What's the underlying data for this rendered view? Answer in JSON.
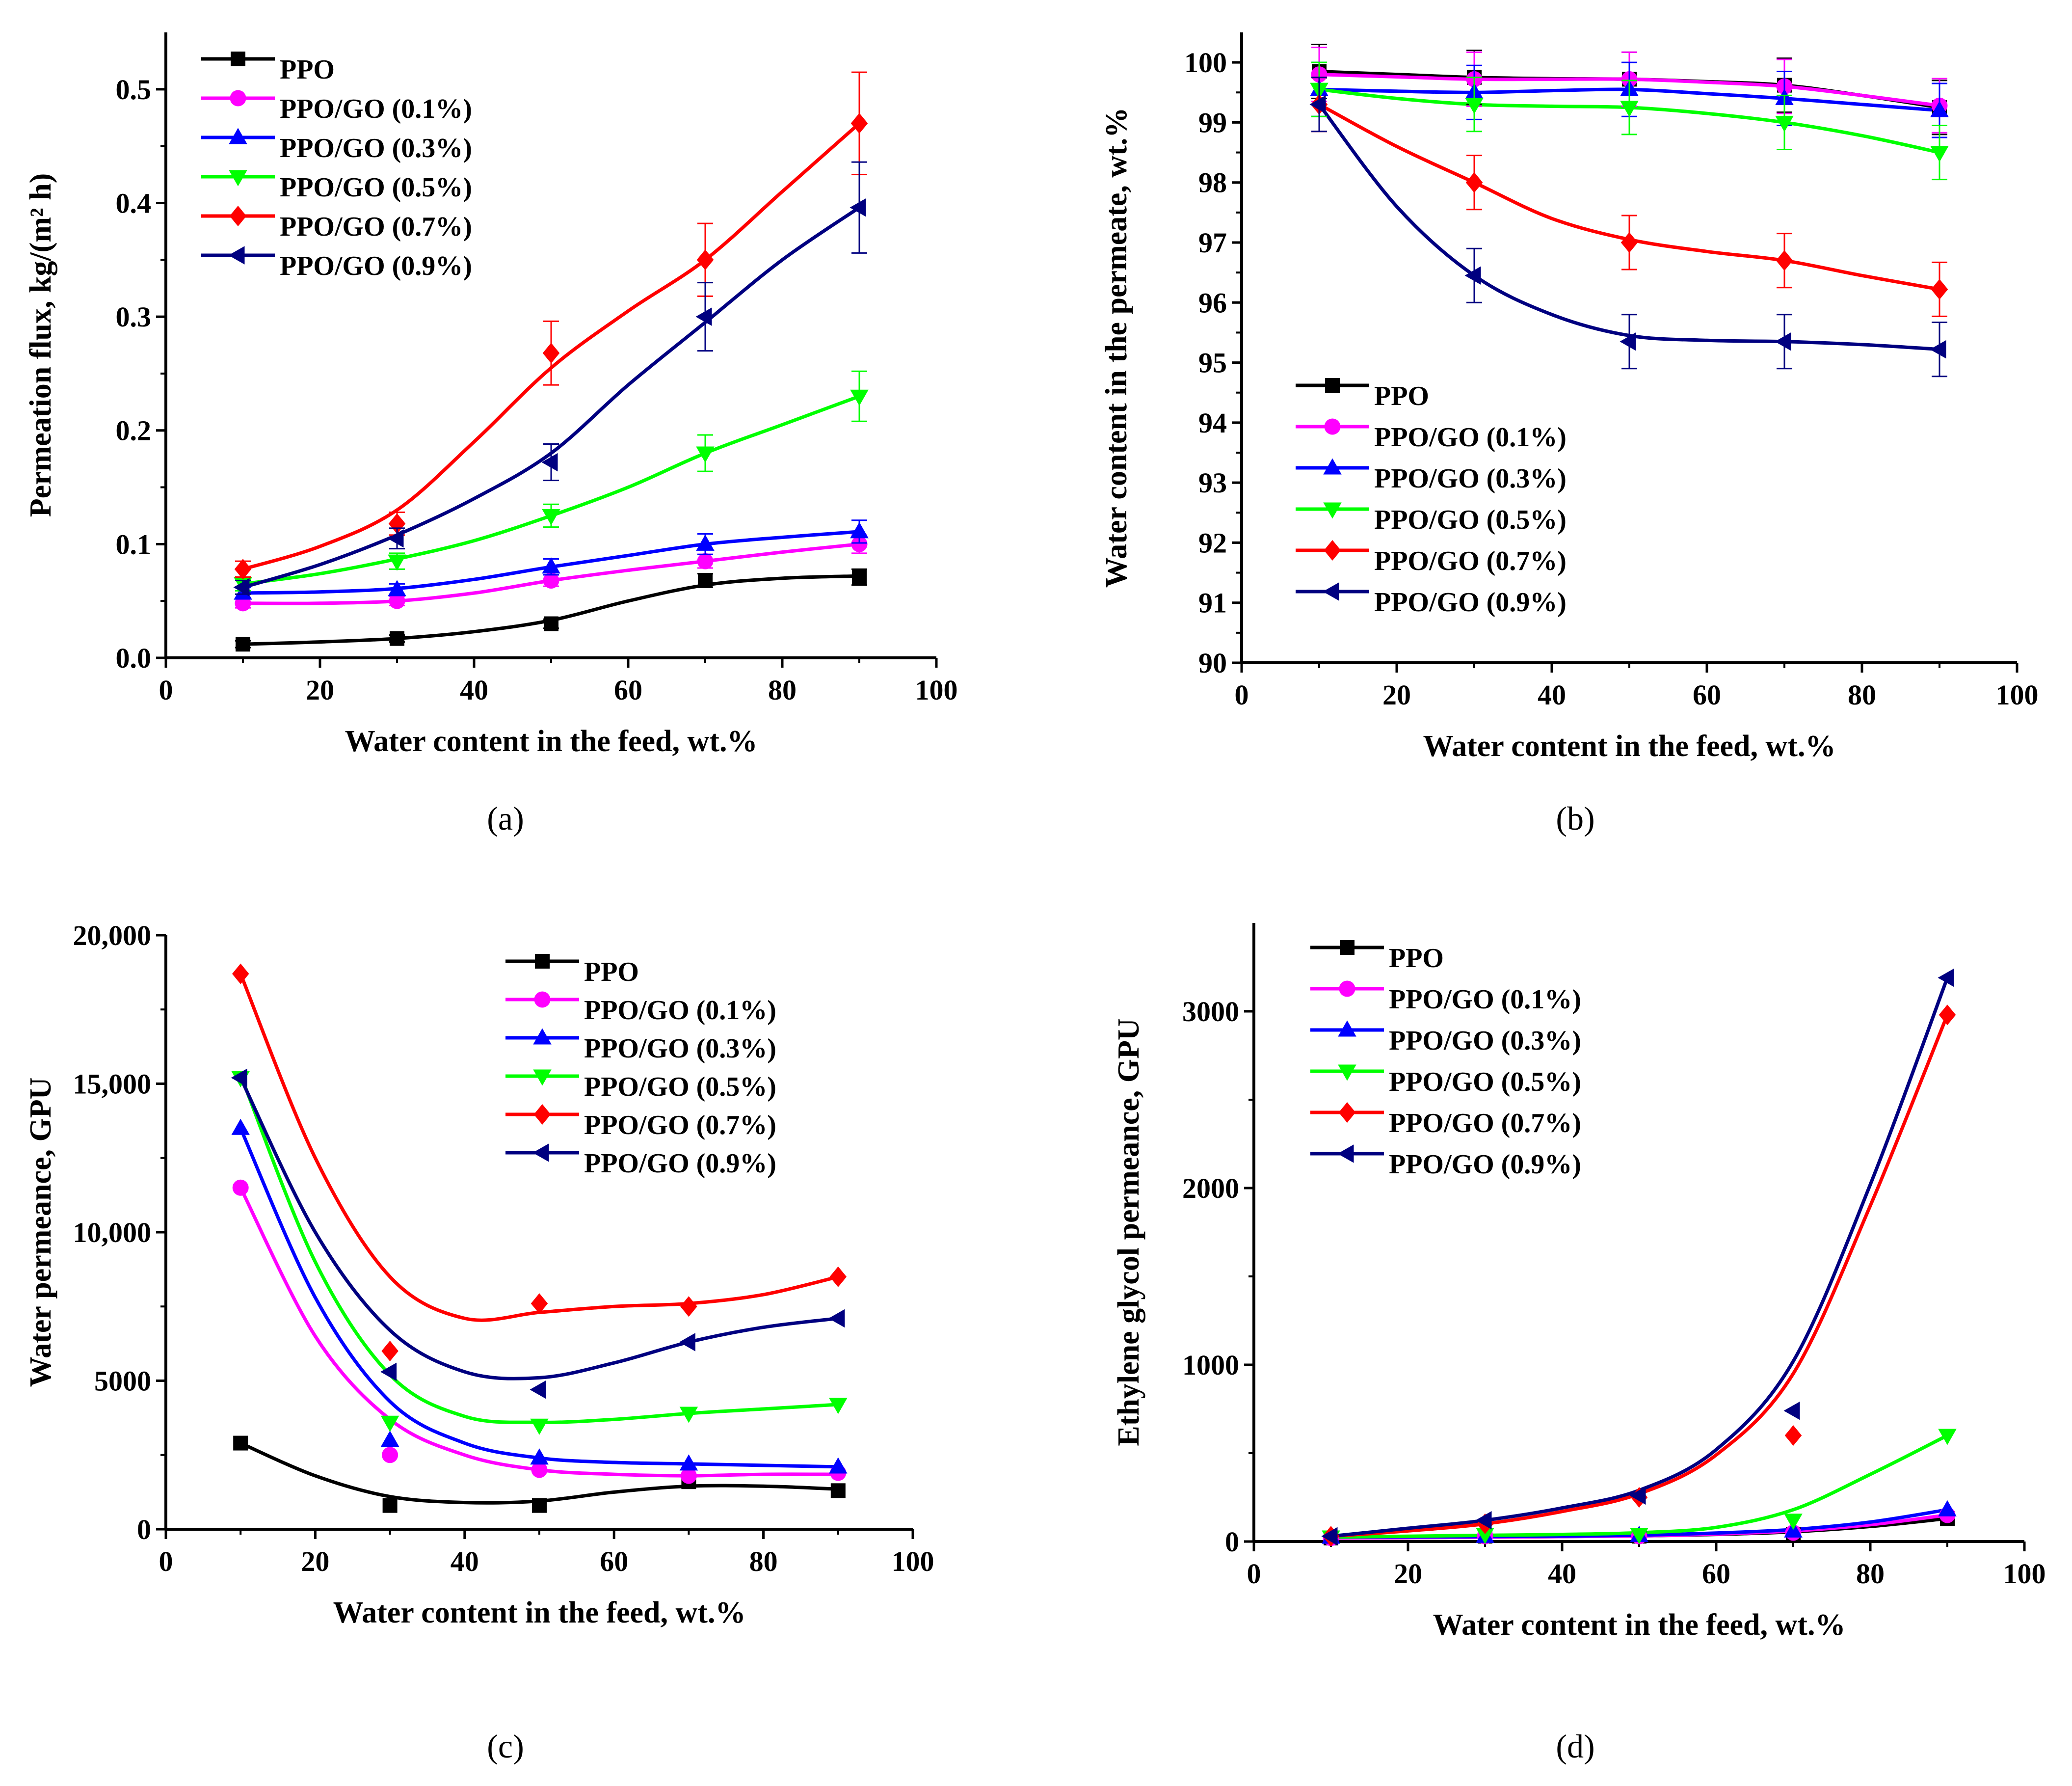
{
  "chart_data": [
    {
      "panel": "(a)",
      "type": "line",
      "xlabel": "Water content in the feed, wt.%",
      "ylabel": "Permeation flux, kg/(m² h)",
      "xlim": [
        0,
        100
      ],
      "ylim": [
        0.0,
        0.55
      ],
      "xticks": [
        0,
        20,
        40,
        60,
        80,
        100
      ],
      "yticks": [
        0.0,
        0.1,
        0.2,
        0.3,
        0.4,
        0.5
      ],
      "ytick_labels": [
        "0.0",
        "0.1",
        "0.2",
        "0.3",
        "0.4",
        "0.5"
      ],
      "legend_position": "top-left",
      "x": [
        10,
        30,
        50,
        70,
        90
      ],
      "series": [
        {
          "name": "PPO",
          "color": "#000000",
          "marker": "square",
          "values": [
            0.012,
            0.017,
            0.03,
            0.068,
            0.071
          ],
          "errors": [
            0.003,
            0.003,
            0.004,
            0.006,
            0.007
          ]
        },
        {
          "name": "PPO/GO (0.1%)",
          "color": "#ff00ff",
          "marker": "circle",
          "values": [
            0.048,
            0.05,
            0.068,
            0.085,
            0.1
          ],
          "errors": [
            0.004,
            0.004,
            0.005,
            0.006,
            0.008
          ]
        },
        {
          "name": "PPO/GO (0.3%)",
          "color": "#0000ff",
          "marker": "triangle-up",
          "values": [
            0.057,
            0.06,
            0.08,
            0.1,
            0.111
          ],
          "errors": [
            0.005,
            0.005,
            0.007,
            0.009,
            0.01
          ]
        },
        {
          "name": "PPO/GO (0.5%)",
          "color": "#00ff00",
          "marker": "triangle-down",
          "values": [
            0.065,
            0.085,
            0.125,
            0.18,
            0.23
          ],
          "errors": [
            0.006,
            0.007,
            0.01,
            0.016,
            0.022
          ]
        },
        {
          "name": "PPO/GO (0.7%)",
          "color": "#ff0000",
          "marker": "diamond",
          "values": [
            0.078,
            0.118,
            0.268,
            0.35,
            0.47
          ],
          "errors": [
            0.007,
            0.01,
            0.028,
            0.032,
            0.045
          ]
        },
        {
          "name": "PPO/GO (0.9%)",
          "color": "#000080",
          "marker": "triangle-left",
          "values": [
            0.062,
            0.105,
            0.172,
            0.3,
            0.396
          ],
          "errors": [
            0.006,
            0.009,
            0.016,
            0.03,
            0.04
          ]
        }
      ],
      "fit_curves": {
        "x": [
          10,
          20,
          30,
          40,
          50,
          60,
          70,
          80,
          90
        ],
        "series": [
          [
            0.012,
            0.014,
            0.017,
            0.023,
            0.033,
            0.05,
            0.064,
            0.07,
            0.072
          ],
          [
            0.048,
            0.048,
            0.05,
            0.057,
            0.068,
            0.077,
            0.085,
            0.093,
            0.1
          ],
          [
            0.057,
            0.058,
            0.061,
            0.069,
            0.08,
            0.09,
            0.1,
            0.106,
            0.111
          ],
          [
            0.065,
            0.074,
            0.087,
            0.103,
            0.125,
            0.15,
            0.18,
            0.205,
            0.23
          ],
          [
            0.078,
            0.098,
            0.13,
            0.19,
            0.255,
            0.305,
            0.35,
            0.41,
            0.47
          ],
          [
            0.062,
            0.082,
            0.108,
            0.14,
            0.18,
            0.24,
            0.295,
            0.35,
            0.396
          ]
        ]
      }
    },
    {
      "panel": "(b)",
      "type": "line",
      "xlabel": "Water content in the feed, wt.%",
      "ylabel": "Water content in the permeate, wt.%",
      "xlim": [
        0,
        100
      ],
      "ylim": [
        90,
        100.5
      ],
      "xticks": [
        0,
        20,
        40,
        60,
        80,
        100
      ],
      "yticks": [
        90,
        91,
        92,
        93,
        94,
        95,
        96,
        97,
        98,
        99,
        100
      ],
      "ytick_labels": [
        "90",
        "91",
        "92",
        "93",
        "94",
        "95",
        "96",
        "97",
        "98",
        "99",
        "100"
      ],
      "legend_position": "bottom-left",
      "x": [
        10,
        30,
        50,
        70,
        90
      ],
      "series": [
        {
          "name": "PPO",
          "color": "#000000",
          "marker": "square",
          "values": [
            99.85,
            99.75,
            99.72,
            99.62,
            99.25
          ],
          "errors": [
            0.45,
            0.45,
            0.45,
            0.45,
            0.45
          ]
        },
        {
          "name": "PPO/GO (0.1%)",
          "color": "#ff00ff",
          "marker": "circle",
          "values": [
            99.8,
            99.72,
            99.72,
            99.6,
            99.28
          ],
          "errors": [
            0.45,
            0.45,
            0.45,
            0.45,
            0.45
          ]
        },
        {
          "name": "PPO/GO (0.3%)",
          "color": "#0000ff",
          "marker": "triangle-up",
          "values": [
            99.55,
            99.5,
            99.55,
            99.4,
            99.2
          ],
          "errors": [
            0.45,
            0.45,
            0.45,
            0.45,
            0.45
          ]
        },
        {
          "name": "PPO/GO (0.5%)",
          "color": "#00ff00",
          "marker": "triangle-down",
          "values": [
            99.55,
            99.3,
            99.25,
            99.0,
            98.5
          ],
          "errors": [
            0.45,
            0.45,
            0.45,
            0.45,
            0.45
          ]
        },
        {
          "name": "PPO/GO (0.7%)",
          "color": "#ff0000",
          "marker": "diamond",
          "values": [
            99.3,
            98.0,
            97.0,
            96.7,
            96.22
          ],
          "errors": [
            0.45,
            0.45,
            0.45,
            0.45,
            0.45
          ]
        },
        {
          "name": "PPO/GO (0.9%)",
          "color": "#000080",
          "marker": "triangle-left",
          "values": [
            99.3,
            96.45,
            95.35,
            95.35,
            95.22
          ],
          "errors": [
            0.45,
            0.45,
            0.45,
            0.45,
            0.45
          ]
        }
      ],
      "fit_curves": {
        "x": [
          10,
          20,
          30,
          40,
          50,
          60,
          70,
          80,
          90
        ],
        "series": [
          [
            99.85,
            99.8,
            99.75,
            99.73,
            99.72,
            99.68,
            99.62,
            99.45,
            99.25
          ],
          [
            99.8,
            99.76,
            99.72,
            99.72,
            99.72,
            99.67,
            99.6,
            99.45,
            99.28
          ],
          [
            99.55,
            99.52,
            99.5,
            99.53,
            99.55,
            99.48,
            99.4,
            99.3,
            99.2
          ],
          [
            99.55,
            99.4,
            99.3,
            99.27,
            99.25,
            99.15,
            99.0,
            98.78,
            98.5
          ],
          [
            99.3,
            98.6,
            98.0,
            97.4,
            97.05,
            96.85,
            96.7,
            96.45,
            96.22
          ],
          [
            99.3,
            97.6,
            96.45,
            95.8,
            95.45,
            95.37,
            95.35,
            95.3,
            95.22
          ]
        ]
      }
    },
    {
      "panel": "(c)",
      "type": "line",
      "xlabel": "Water content in the feed, wt.%",
      "ylabel": "Water permeance, GPU",
      "xlim": [
        0,
        100
      ],
      "ylim": [
        0,
        20000
      ],
      "xticks": [
        0,
        20,
        40,
        60,
        80,
        100
      ],
      "yticks": [
        0,
        5000,
        10000,
        15000,
        20000
      ],
      "ytick_labels": [
        "0",
        "5000",
        "10,000",
        "15,000",
        "20,000"
      ],
      "legend_position": "top-right",
      "x": [
        10,
        30,
        50,
        70,
        90
      ],
      "series": [
        {
          "name": "PPO",
          "color": "#000000",
          "marker": "square",
          "values": [
            2900,
            800,
            800,
            1600,
            1300
          ]
        },
        {
          "name": "PPO/GO (0.1%)",
          "color": "#ff00ff",
          "marker": "circle",
          "values": [
            11500,
            2500,
            2000,
            1800,
            1900
          ]
        },
        {
          "name": "PPO/GO (0.3%)",
          "color": "#0000ff",
          "marker": "triangle-up",
          "values": [
            13500,
            3000,
            2400,
            2200,
            2100
          ]
        },
        {
          "name": "PPO/GO (0.5%)",
          "color": "#00ff00",
          "marker": "triangle-down",
          "values": [
            15200,
            3600,
            3500,
            3900,
            4200
          ]
        },
        {
          "name": "PPO/GO (0.7%)",
          "color": "#ff0000",
          "marker": "diamond",
          "values": [
            18700,
            6000,
            7600,
            7500,
            8500
          ]
        },
        {
          "name": "PPO/GO (0.9%)",
          "color": "#000080",
          "marker": "triangle-left",
          "values": [
            15200,
            5300,
            4700,
            6300,
            7100
          ]
        }
      ],
      "fit_curves": {
        "x": [
          10,
          20,
          30,
          40,
          50,
          60,
          70,
          80,
          90
        ],
        "series": [
          [
            2900,
            1800,
            1100,
            900,
            950,
            1250,
            1450,
            1450,
            1350
          ],
          [
            11500,
            6500,
            3700,
            2500,
            2000,
            1850,
            1800,
            1850,
            1850
          ],
          [
            13500,
            7800,
            4300,
            2900,
            2400,
            2250,
            2200,
            2150,
            2100
          ],
          [
            15300,
            9000,
            5200,
            3800,
            3600,
            3700,
            3900,
            4050,
            4200
          ],
          [
            18700,
            12500,
            8500,
            7100,
            7300,
            7500,
            7600,
            7900,
            8500
          ],
          [
            15200,
            10000,
            6700,
            5300,
            5100,
            5600,
            6300,
            6800,
            7100
          ]
        ]
      }
    },
    {
      "panel": "(d)",
      "type": "line",
      "xlabel": "Water content in the feed, wt.%",
      "ylabel": "Ethylene glycol permeance, GPU",
      "xlim": [
        0,
        100
      ],
      "ylim": [
        0,
        3500
      ],
      "xticks": [
        0,
        20,
        40,
        60,
        80,
        100
      ],
      "yticks": [
        0,
        1000,
        2000,
        3000
      ],
      "ytick_labels": [
        "0",
        "1000",
        "2000",
        "3000"
      ],
      "legend_position": "top-left",
      "x": [
        10,
        30,
        50,
        70,
        90
      ],
      "series": [
        {
          "name": "PPO",
          "color": "#000000",
          "marker": "square",
          "values": [
            20,
            30,
            30,
            40,
            130
          ]
        },
        {
          "name": "PPO/GO (0.1%)",
          "color": "#ff00ff",
          "marker": "circle",
          "values": [
            20,
            30,
            30,
            50,
            150
          ]
        },
        {
          "name": "PPO/GO (0.3%)",
          "color": "#0000ff",
          "marker": "triangle-up",
          "values": [
            25,
            30,
            35,
            60,
            180
          ]
        },
        {
          "name": "PPO/GO (0.5%)",
          "color": "#00ff00",
          "marker": "triangle-down",
          "values": [
            25,
            40,
            40,
            120,
            600
          ]
        },
        {
          "name": "PPO/GO (0.7%)",
          "color": "#ff0000",
          "marker": "diamond",
          "values": [
            30,
            100,
            250,
            600,
            2980
          ]
        },
        {
          "name": "PPO/GO (0.9%)",
          "color": "#000080",
          "marker": "triangle-left",
          "values": [
            30,
            120,
            260,
            740,
            3190
          ]
        }
      ],
      "fit_curves": {
        "x": [
          10,
          20,
          30,
          40,
          50,
          60,
          70,
          80,
          90
        ],
        "series": [
          [
            20,
            22,
            25,
            28,
            32,
            40,
            55,
            85,
            130
          ],
          [
            20,
            22,
            25,
            28,
            32,
            42,
            60,
            95,
            150
          ],
          [
            25,
            26,
            28,
            31,
            36,
            48,
            68,
            110,
            180
          ],
          [
            25,
            30,
            35,
            40,
            50,
            80,
            180,
            380,
            600
          ],
          [
            30,
            60,
            100,
            170,
            270,
            490,
            950,
            1900,
            2980
          ],
          [
            30,
            75,
            120,
            190,
            290,
            520,
            1020,
            2020,
            3190
          ]
        ]
      }
    }
  ]
}
